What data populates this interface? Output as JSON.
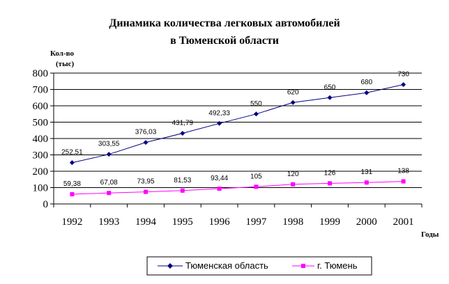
{
  "chart_data": {
    "type": "line",
    "title_lines": [
      "Динамика количества легковых автомобилей",
      "в Тюменской области"
    ],
    "ylabel_lines": [
      "Кол-во",
      "(тыс)"
    ],
    "xlabel": "Годы",
    "x": [
      "1992",
      "1993",
      "1994",
      "1995",
      "1996",
      "1997",
      "1998",
      "1999",
      "2000",
      "2001"
    ],
    "ylim": [
      0,
      800
    ],
    "yticks": [
      0,
      100,
      200,
      300,
      400,
      500,
      600,
      700,
      800
    ],
    "grid": "horizontal",
    "legend_position": "bottom",
    "series": [
      {
        "name": "Тюменская область",
        "color": "#000080",
        "marker": "diamond",
        "values": [
          252.51,
          303.55,
          376.03,
          431.79,
          492.33,
          550,
          620,
          650,
          680,
          730
        ],
        "labels": [
          "252,51",
          "303,55",
          "376,03",
          "431,79",
          "492,33",
          "550",
          "620",
          "650",
          "680",
          "730"
        ]
      },
      {
        "name": "г. Тюмень",
        "color": "#ff00ff",
        "marker": "square",
        "values": [
          59.38,
          67.08,
          73.95,
          81.53,
          93.44,
          105,
          120,
          126,
          131,
          138
        ],
        "labels": [
          "59,38",
          "67,08",
          "73,95",
          "81,53",
          "93,44",
          "105",
          "120",
          "126",
          "131",
          "138"
        ]
      }
    ]
  }
}
